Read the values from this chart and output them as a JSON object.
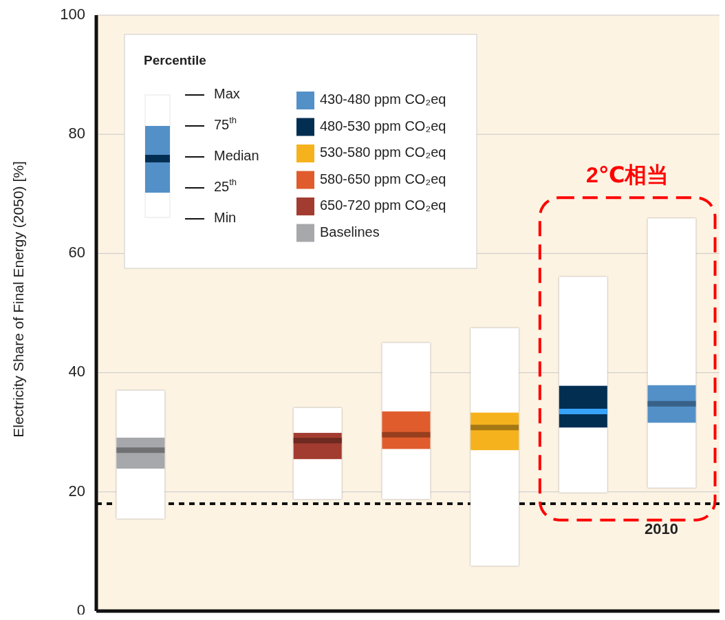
{
  "chart_data": {
    "type": "box",
    "ylabel": "Electricity Share of Final Energy (2050) [%]",
    "legend_title": "Percentile",
    "categories": [
      null,
      null,
      null,
      null,
      null,
      null,
      null
    ],
    "ylim": [
      0,
      100
    ],
    "yticks": [
      0,
      20,
      40,
      60,
      80,
      100
    ],
    "grid": "y",
    "legend": "top left",
    "series": [
      {
        "name": "430-480 ppm CO₂eq",
        "color": "#5390c8",
        "boxes": [
          null,
          null,
          null,
          null,
          null,
          null,
          {
            "low": 20.7,
            "q1": 31.6,
            "median": 34.8,
            "q3": 37.9,
            "high": 65.9
          }
        ]
      },
      {
        "name": "480-530 ppm CO₂eq",
        "color": "#022e52",
        "boxes": [
          null,
          null,
          null,
          null,
          null,
          {
            "low": 19.9,
            "q1": 30.8,
            "median": 33.5,
            "q3": 37.8,
            "high": 56.1
          },
          null
        ]
      },
      {
        "name": "530-580 ppm CO₂eq",
        "color": "#f6b21d",
        "boxes": [
          null,
          null,
          null,
          null,
          {
            "low": 7.6,
            "q1": 27.0,
            "median": 30.8,
            "q3": 33.3,
            "high": 47.5
          },
          null,
          null
        ]
      },
      {
        "name": "580-650 ppm CO₂eq",
        "color": "#e05c2c",
        "boxes": [
          null,
          null,
          null,
          {
            "low": 18.8,
            "q1": 27.2,
            "median": 29.6,
            "q3": 33.5,
            "high": 45.0
          },
          null,
          null,
          null
        ]
      },
      {
        "name": "650-720 ppm CO₂eq",
        "color": "#a33c30",
        "boxes": [
          null,
          null,
          {
            "low": 18.8,
            "q1": 25.5,
            "median": 28.6,
            "q3": 29.9,
            "high": 34.1
          },
          null,
          null,
          null,
          null
        ]
      },
      {
        "name": "Baselines",
        "color": "#a7a8ab",
        "boxes": [
          {
            "low": 15.5,
            "q1": 23.9,
            "median": 27.0,
            "q3": 29.1,
            "high": 37.0
          },
          null,
          null,
          null,
          null,
          null,
          null
        ]
      }
    ],
    "ref_lines": [
      {
        "axis": "y",
        "value": 18.0,
        "color": "#111111",
        "line_style": "dotted"
      }
    ],
    "annotations": [
      "Max",
      "75$^{th}$",
      "Median",
      "25$^{th}$",
      "Min",
      "2℃相当",
      {
        "text": "2010",
        "y": 18.0
      }
    ]
  }
}
